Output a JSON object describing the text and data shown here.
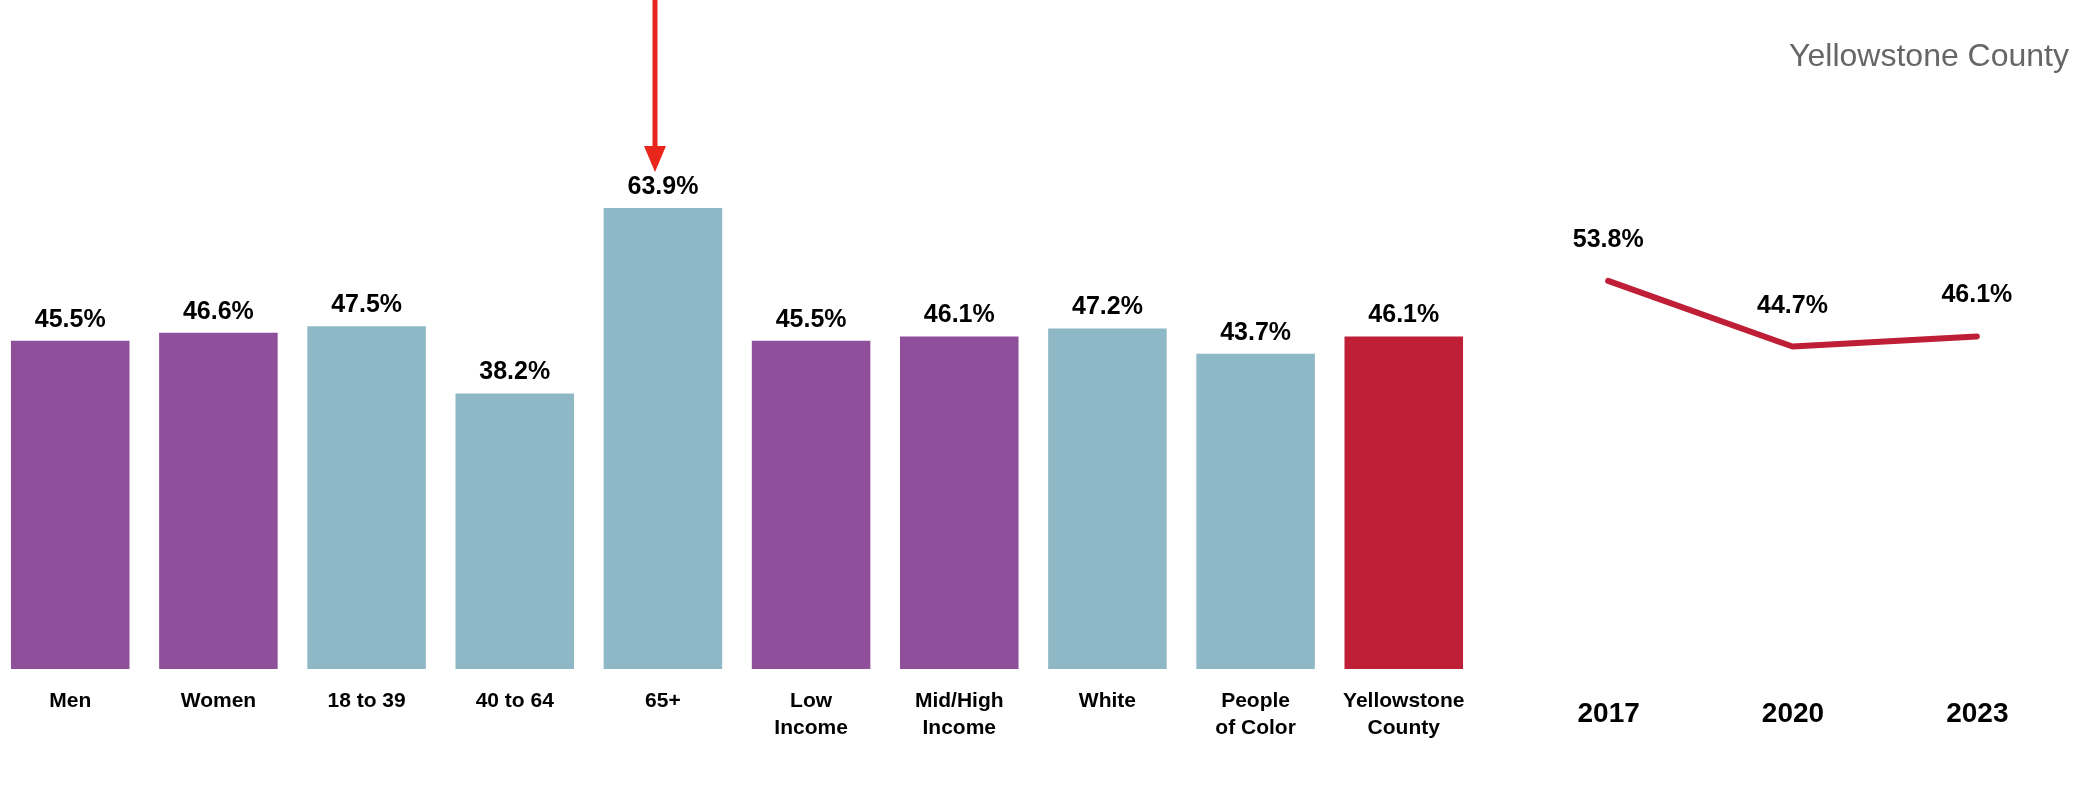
{
  "chart_data": [
    {
      "type": "bar",
      "categories": [
        "Men",
        "Women",
        "18 to 39",
        "40 to 64",
        "65+",
        "Low Income",
        "Mid/High Income",
        "White",
        "People of Color",
        "Yellowstone County"
      ],
      "values": [
        45.5,
        46.6,
        47.5,
        38.2,
        63.9,
        45.5,
        46.1,
        47.2,
        43.7,
        46.1
      ],
      "colors": [
        "#8f4f9b",
        "#8f4f9b",
        "#8fb8c6",
        "#8fb8c6",
        "#8fb8c6",
        "#8f4f9b",
        "#8f4f9b",
        "#8fb8c6",
        "#8fb8c6",
        "#be1e36"
      ],
      "value_labels": [
        "45.5%",
        "46.6%",
        "47.5%",
        "38.2%",
        "63.9%",
        "45.5%",
        "46.1%",
        "47.2%",
        "43.7%",
        "46.1%"
      ]
    },
    {
      "type": "line",
      "title": "Yellowstone County",
      "categories": [
        "2017",
        "2020",
        "2023"
      ],
      "series": [
        {
          "color": "#be1e36",
          "values": [
            53.8,
            44.7,
            46.1
          ],
          "value_labels": [
            "53.8%",
            "44.7%",
            "46.1%"
          ]
        }
      ]
    }
  ]
}
